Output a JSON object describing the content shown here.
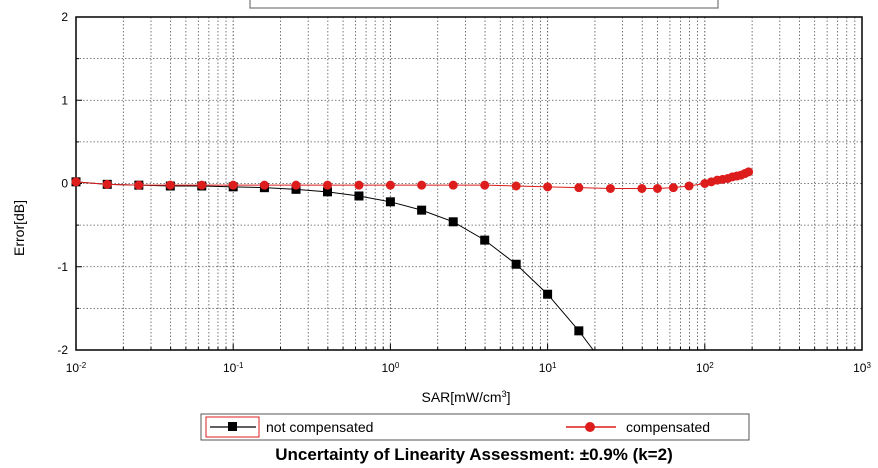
{
  "chart_data": {
    "type": "line",
    "x_scale": "log",
    "xlim": [
      0.01,
      1000
    ],
    "ylim": [
      -2,
      2
    ],
    "xlabel": "SAR[mW/cm",
    "xlabel_superscript": "3",
    "xlabel_suffix": "]",
    "ylabel": "Error[dB]",
    "x_tick_labels": [
      {
        "base": "10",
        "exp": "-2",
        "value": 0.01
      },
      {
        "base": "10",
        "exp": "-1",
        "value": 0.1
      },
      {
        "base": "10",
        "exp": "0",
        "value": 1
      },
      {
        "base": "10",
        "exp": "1",
        "value": 10
      },
      {
        "base": "10",
        "exp": "2",
        "value": 100
      },
      {
        "base": "10",
        "exp": "3",
        "value": 1000
      }
    ],
    "y_ticks": [
      {
        "label": "2",
        "value": 2
      },
      {
        "label": "1",
        "value": 1
      },
      {
        "label": "0",
        "value": 0
      },
      {
        "label": "-1",
        "value": -1
      },
      {
        "label": "-2",
        "value": -2
      }
    ],
    "grid": true,
    "legend_position": "bottom",
    "series": [
      {
        "name": "not compensated",
        "color": "#000000",
        "line_color": "#000000",
        "marker": "square",
        "x": [
          0.01,
          0.0158,
          0.0251,
          0.0398,
          0.0631,
          0.1,
          0.158,
          0.251,
          0.398,
          0.631,
          1.0,
          1.58,
          2.51,
          3.98,
          6.31,
          10.0,
          15.8
        ],
        "y": [
          0.02,
          -0.01,
          -0.02,
          -0.03,
          -0.03,
          -0.04,
          -0.05,
          -0.07,
          -0.1,
          -0.15,
          -0.22,
          -0.32,
          -0.46,
          -0.68,
          -0.97,
          -1.33,
          -1.77
        ],
        "line_extends_to": {
          "x": 19.5,
          "y": -2.0
        }
      },
      {
        "name": "compensated",
        "color": "#dd1c1c",
        "line_color": "#dd1c1c",
        "marker": "circle",
        "x": [
          0.01,
          0.0158,
          0.0251,
          0.0398,
          0.0631,
          0.1,
          0.158,
          0.251,
          0.398,
          0.631,
          1.0,
          1.58,
          2.51,
          3.98,
          6.31,
          10.0,
          15.8,
          25.1,
          39.8,
          50.0,
          63.1,
          79.4,
          100,
          110,
          120,
          130,
          140,
          150,
          160,
          170,
          180,
          190
        ],
        "y": [
          0.02,
          -0.01,
          -0.02,
          -0.02,
          -0.02,
          -0.02,
          -0.02,
          -0.02,
          -0.02,
          -0.02,
          -0.02,
          -0.02,
          -0.02,
          -0.02,
          -0.03,
          -0.04,
          -0.05,
          -0.06,
          -0.06,
          -0.06,
          -0.05,
          -0.03,
          0.0,
          0.02,
          0.04,
          0.05,
          0.06,
          0.08,
          0.09,
          0.1,
          0.12,
          0.14
        ]
      }
    ],
    "caption": "Uncertainty of Linearity Assessment: ±0.9% (k=2)"
  }
}
